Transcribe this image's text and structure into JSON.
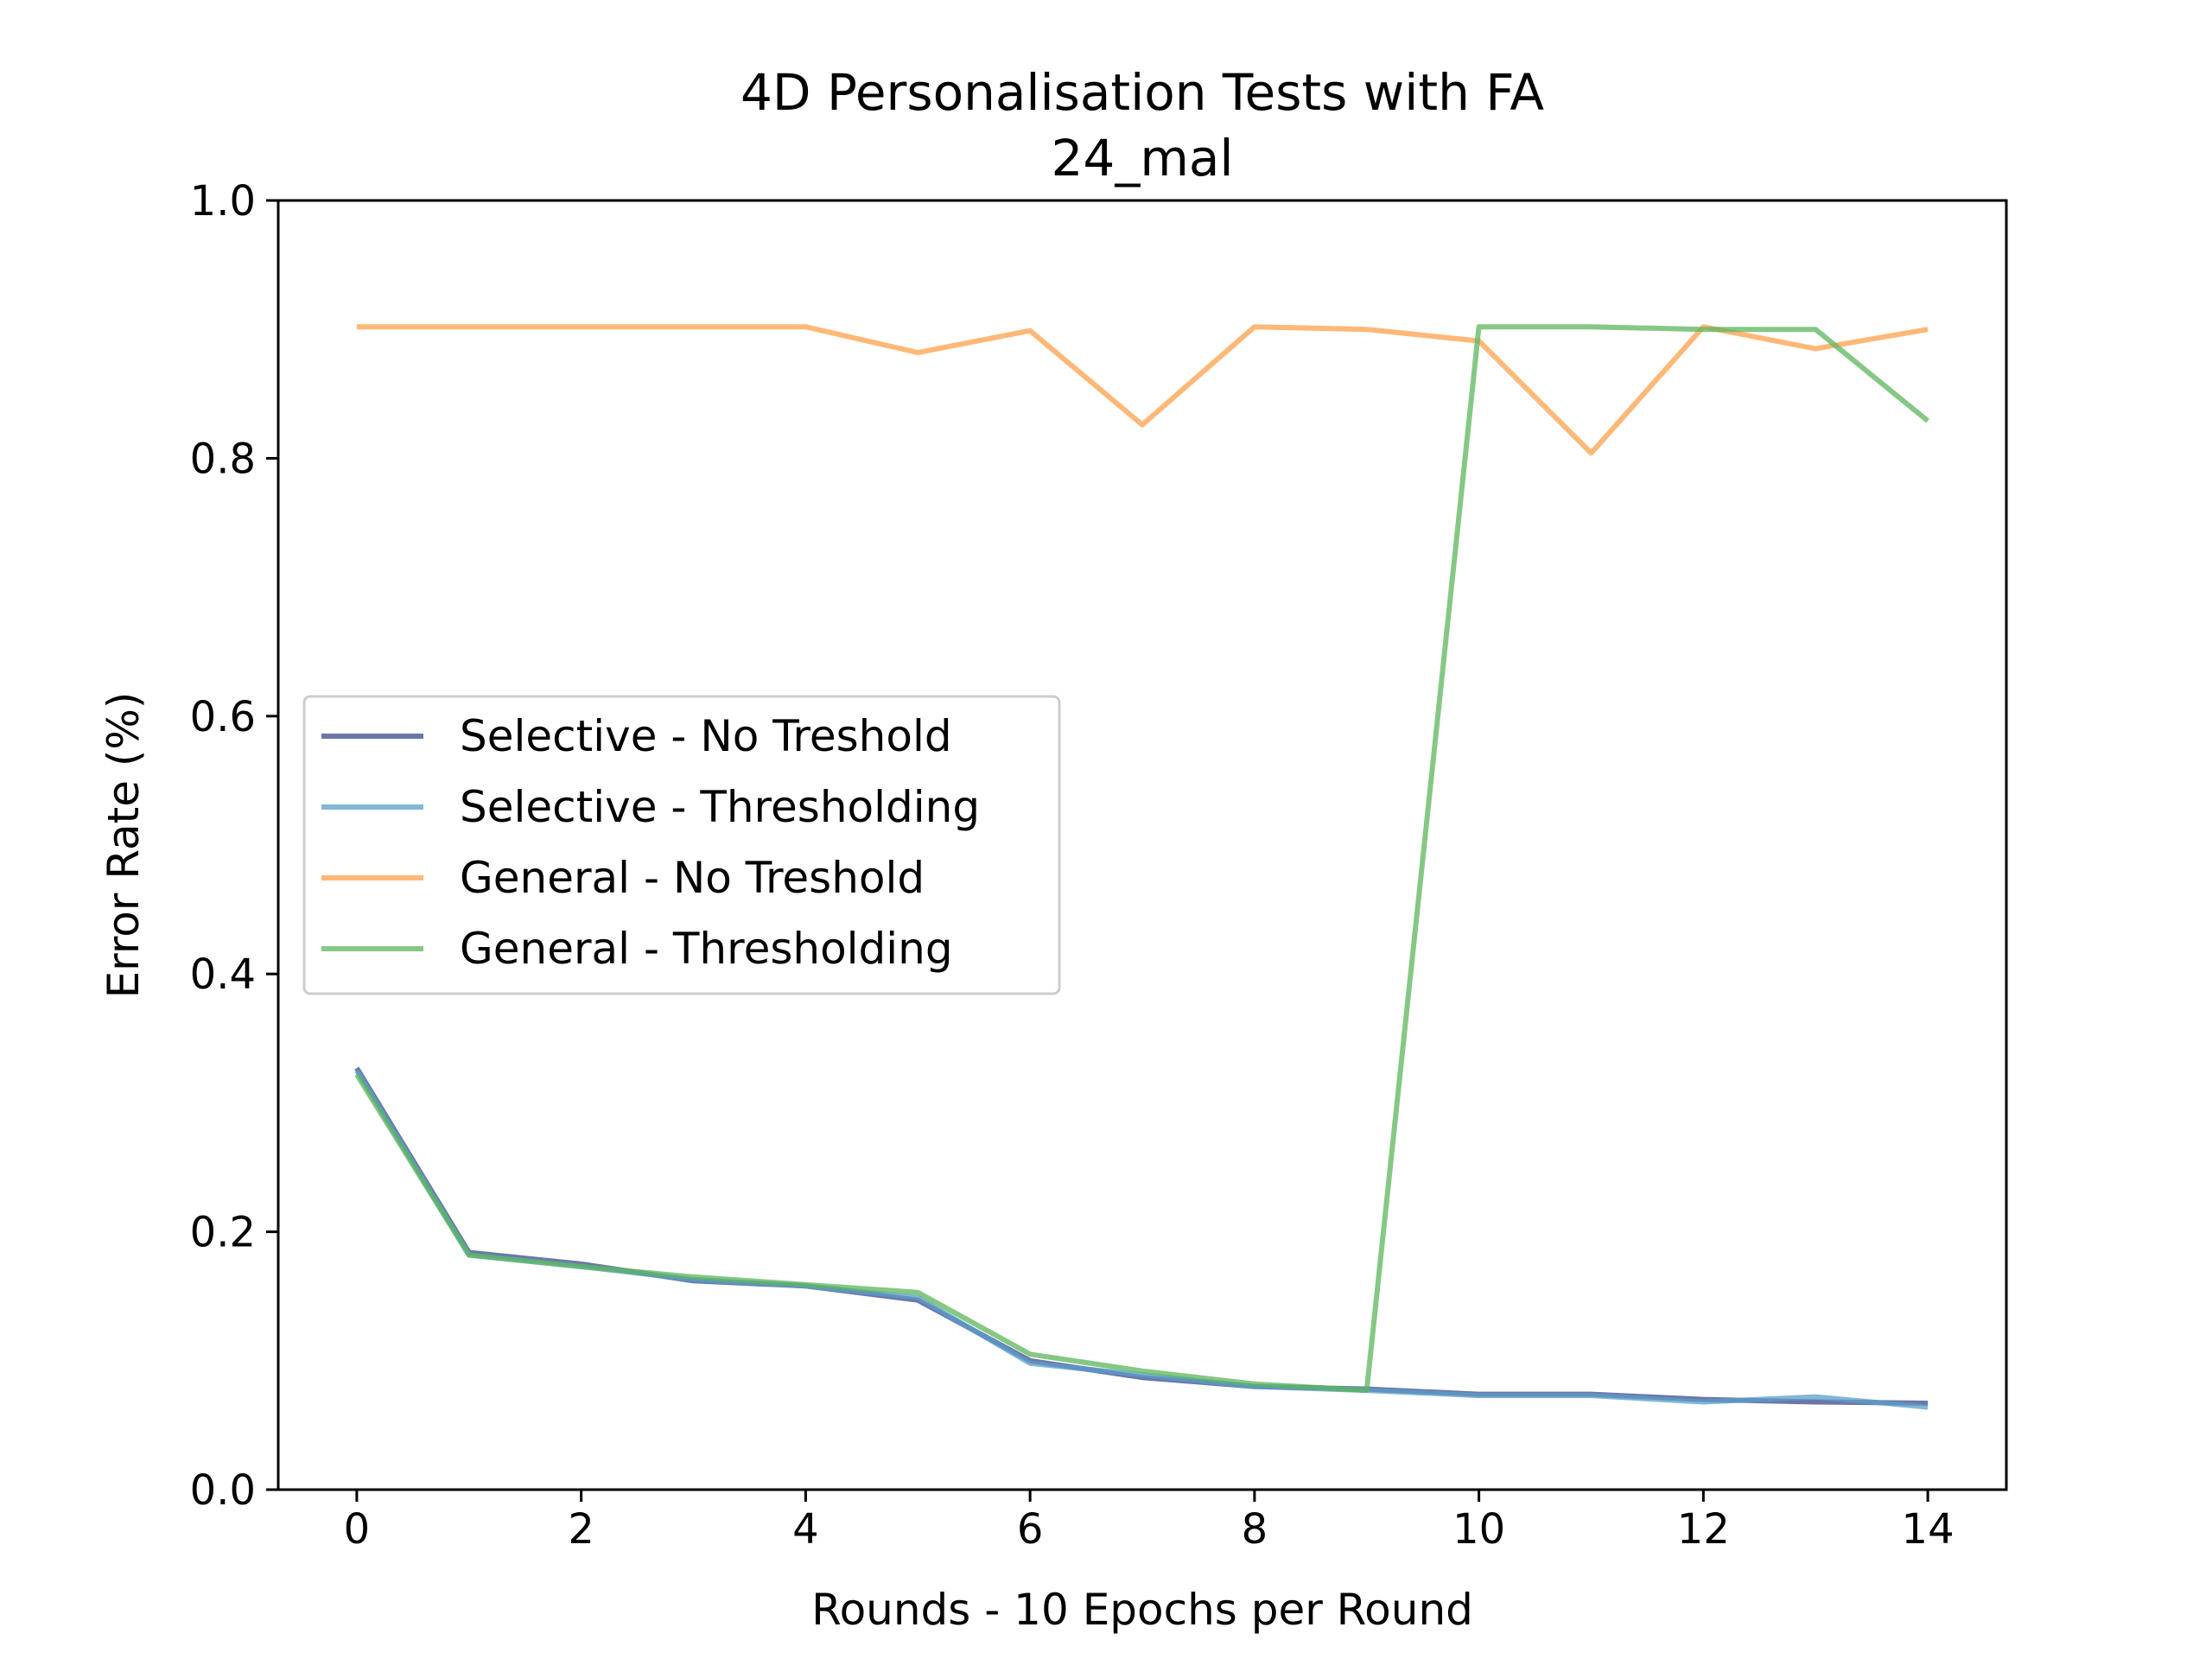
{
  "chart_data": {
    "type": "line",
    "title": "4D Personalisation Tests with FA",
    "subtitle": "24_mal",
    "xlabel": "Rounds - 10 Epochs per Round",
    "ylabel": "Error Rate (%)",
    "xlim": [
      -0.7,
      14.7
    ],
    "ylim": [
      0.0,
      1.0
    ],
    "xticks": [
      0,
      2,
      4,
      6,
      8,
      10,
      12,
      14
    ],
    "xtick_labels": [
      "0",
      "2",
      "4",
      "6",
      "8",
      "10",
      "12",
      "14"
    ],
    "yticks": [
      0.0,
      0.2,
      0.4,
      0.6,
      0.8,
      1.0
    ],
    "ytick_labels": [
      "0.0",
      "0.2",
      "0.4",
      "0.6",
      "0.8",
      "1.0"
    ],
    "grid": false,
    "legend_position": "center-left",
    "x": [
      0,
      1,
      2,
      3,
      4,
      5,
      6,
      7,
      8,
      9,
      10,
      11,
      12,
      13,
      14
    ],
    "series": [
      {
        "name": "Selective - No Treshold",
        "color": "#3b4a8c",
        "values": [
          0.327,
          0.184,
          0.175,
          0.162,
          0.158,
          0.147,
          0.1,
          0.087,
          0.08,
          0.078,
          0.074,
          0.074,
          0.07,
          0.068,
          0.067
        ]
      },
      {
        "name": "Selective - Thresholding",
        "color": "#5a9ec9",
        "values": [
          0.325,
          0.182,
          0.173,
          0.163,
          0.158,
          0.149,
          0.098,
          0.089,
          0.08,
          0.077,
          0.073,
          0.073,
          0.068,
          0.072,
          0.064
        ]
      },
      {
        "name": "General - No Treshold",
        "color": "#ffa04a",
        "values": [
          0.902,
          0.902,
          0.902,
          0.902,
          0.902,
          0.882,
          0.899,
          0.826,
          0.902,
          0.9,
          0.891,
          0.804,
          0.902,
          0.885,
          0.9
        ]
      },
      {
        "name": "General - Thresholding",
        "color": "#5cb55c",
        "values": [
          0.322,
          0.182,
          0.173,
          0.165,
          0.159,
          0.153,
          0.105,
          0.092,
          0.082,
          0.077,
          0.902,
          0.902,
          0.9,
          0.9,
          0.829
        ]
      }
    ]
  }
}
